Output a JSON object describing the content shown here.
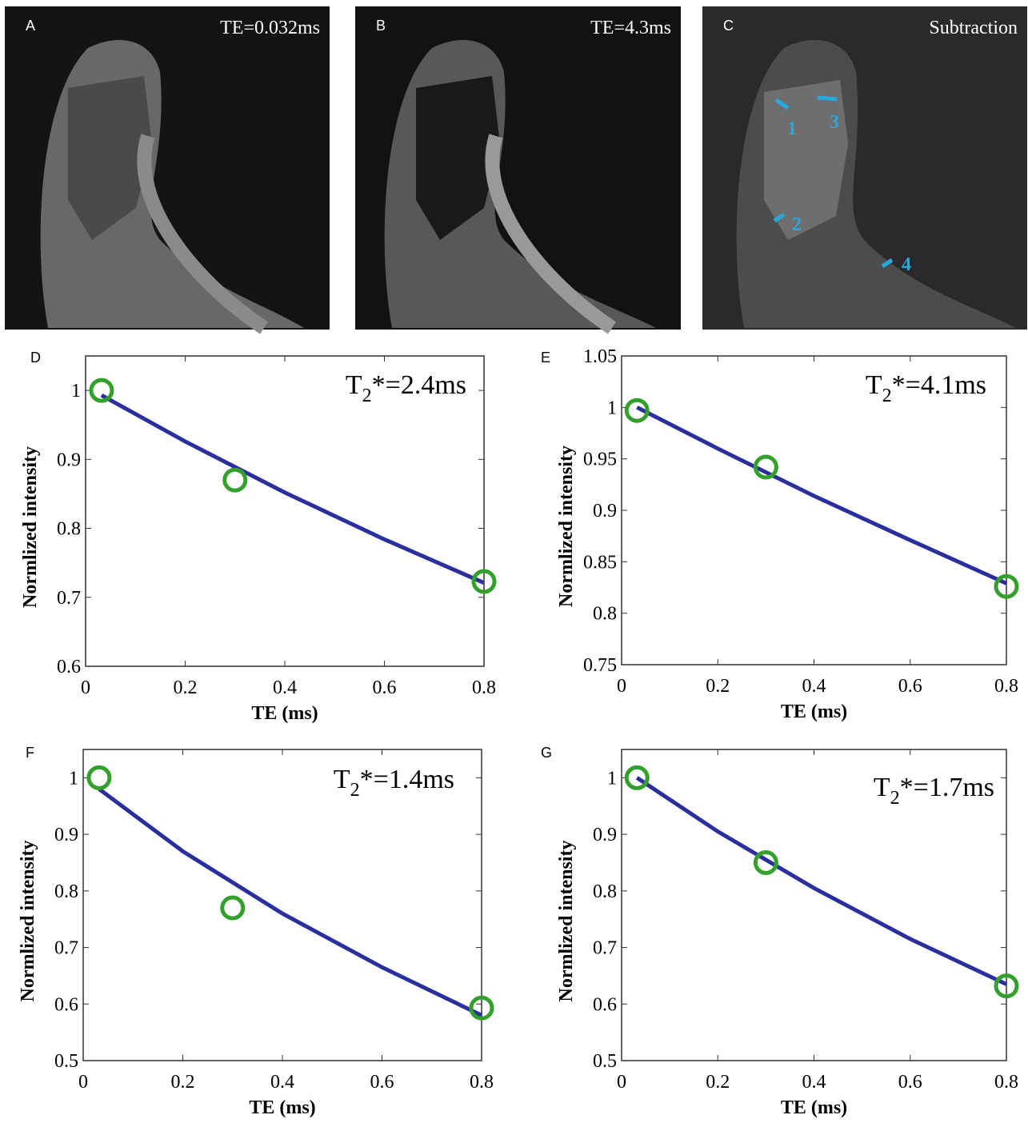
{
  "images": [
    {
      "label": "A",
      "caption": "TE=0.032ms"
    },
    {
      "label": "B",
      "caption": "TE=4.3ms"
    },
    {
      "label": "C",
      "caption": "Subtraction",
      "arrows": [
        "1",
        "2",
        "3",
        "4"
      ]
    }
  ],
  "chart_data": [
    {
      "type": "scatter",
      "panel": "D",
      "annotation": {
        "base": "T",
        "sub": "2",
        "rest": "*=2.4ms"
      },
      "xlabel": "TE (ms)",
      "ylabel": "Normlized intensity",
      "xlim": [
        0,
        0.8
      ],
      "xticks": [
        0,
        0.2,
        0.4,
        0.6,
        0.8
      ],
      "ylim": [
        0.6,
        1.05
      ],
      "yticks": [
        0.6,
        0.7,
        0.8,
        0.9,
        1
      ],
      "series": [
        {
          "type": "line",
          "color": "#2b2f9e",
          "x": [
            0.032,
            0.2,
            0.4,
            0.6,
            0.8
          ],
          "values": [
            0.993,
            0.926,
            0.852,
            0.784,
            0.721
          ]
        },
        {
          "type": "scatter",
          "color": "#33a02c",
          "x": [
            0.032,
            0.3,
            0.8
          ],
          "values": [
            1,
            0.87,
            0.723
          ]
        }
      ]
    },
    {
      "type": "scatter",
      "panel": "E",
      "annotation": {
        "base": "T",
        "sub": "2",
        "rest": "*=4.1ms"
      },
      "xlabel": "TE (ms)",
      "ylabel": "Normlized intensity",
      "xlim": [
        0,
        0.8
      ],
      "xticks": [
        0,
        0.2,
        0.4,
        0.6,
        0.8
      ],
      "ylim": [
        0.75,
        1.05
      ],
      "yticks": [
        0.75,
        0.8,
        0.85,
        0.9,
        0.95,
        1,
        1.05
      ],
      "series": [
        {
          "type": "line",
          "color": "#2b2f9e",
          "x": [
            0.032,
            0.2,
            0.4,
            0.6,
            0.8
          ],
          "values": [
            1,
            0.96,
            0.914,
            0.871,
            0.829
          ]
        },
        {
          "type": "scatter",
          "color": "#33a02c",
          "x": [
            0.032,
            0.3,
            0.8
          ],
          "values": [
            0.997,
            0.942,
            0.826
          ]
        }
      ]
    },
    {
      "type": "scatter",
      "panel": "F",
      "annotation": {
        "base": "T",
        "sub": "2",
        "rest": "*=1.4ms"
      },
      "xlabel": "TE (ms)",
      "ylabel": "Normlized intensity",
      "xlim": [
        0,
        0.8
      ],
      "xticks": [
        0,
        0.2,
        0.4,
        0.6,
        0.8
      ],
      "ylim": [
        0.5,
        1.05
      ],
      "yticks": [
        0.5,
        0.6,
        0.7,
        0.8,
        0.9,
        1
      ],
      "series": [
        {
          "type": "line",
          "color": "#2b2f9e",
          "x": [
            0.032,
            0.2,
            0.4,
            0.6,
            0.8
          ],
          "values": [
            0.98,
            0.87,
            0.76,
            0.665,
            0.58
          ]
        },
        {
          "type": "scatter",
          "color": "#33a02c",
          "x": [
            0.032,
            0.3,
            0.8
          ],
          "values": [
            1,
            0.77,
            0.593
          ]
        }
      ]
    },
    {
      "type": "scatter",
      "panel": "G",
      "annotation": {
        "base": "T",
        "sub": "2",
        "rest": "*=1.7ms"
      },
      "xlabel": "TE (ms)",
      "ylabel": "Normlized intensity",
      "xlim": [
        0,
        0.8
      ],
      "xticks": [
        0,
        0.2,
        0.4,
        0.6,
        0.8
      ],
      "ylim": [
        0.5,
        1.05
      ],
      "yticks": [
        0.5,
        0.6,
        0.7,
        0.8,
        0.9,
        1
      ],
      "series": [
        {
          "type": "line",
          "color": "#2b2f9e",
          "x": [
            0.032,
            0.2,
            0.4,
            0.6,
            0.8
          ],
          "values": [
            1,
            0.905,
            0.805,
            0.715,
            0.635
          ]
        },
        {
          "type": "scatter",
          "color": "#33a02c",
          "x": [
            0.032,
            0.3,
            0.8
          ],
          "values": [
            1,
            0.85,
            0.632
          ]
        }
      ]
    }
  ]
}
